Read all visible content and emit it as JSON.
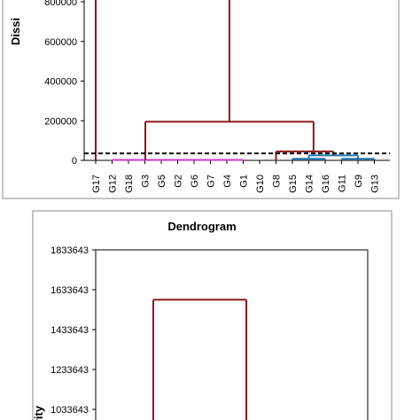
{
  "chart_data": [
    {
      "type": "dendrogram",
      "ylabel": "Dissi",
      "y_ticks": [
        0,
        200000,
        400000,
        600000,
        800000
      ],
      "y_tick_labels": [
        "0",
        "200000",
        "400000",
        "600000",
        "800000"
      ],
      "ylim": [
        0,
        820000
      ],
      "leaves": [
        "G17",
        "G12",
        "G18",
        "G3",
        "G5",
        "G2",
        "G6",
        "G7",
        "G4",
        "G1",
        "G10",
        "G8",
        "G15",
        "G14",
        "G16",
        "G11",
        "G9",
        "G13"
      ],
      "truncation_line": 35000,
      "merges": [
        {
          "left": "G17",
          "right": "cluster_rest",
          "height": 820000,
          "color": "#8B1A1A"
        },
        {
          "left": "cluster_magenta",
          "right": "cluster_blue_group",
          "height": 195000,
          "color": "#8B1A1A"
        },
        {
          "left": "G8",
          "right": "cluster_blue",
          "height": 45000,
          "color": "#8B1A1A"
        },
        {
          "left": "cluster_blue_a",
          "right": "cluster_blue_b",
          "height": 25000,
          "color": "#1F77B4"
        }
      ],
      "cluster_colors": {
        "magenta": "#CC33CC",
        "blue": "#1F77B4",
        "main": "#8B1A1A"
      }
    },
    {
      "type": "dendrogram",
      "title": "Dendrogram",
      "ylabel": "rity",
      "y_ticks": [
        1033643,
        1233643,
        1433643,
        1633643,
        1833643
      ],
      "y_tick_labels": [
        "1033643",
        "1233643",
        "1433643",
        "1633643",
        "1833643"
      ],
      "ylim": [
        933643,
        1833643
      ],
      "merges": [
        {
          "height": 1583643,
          "color": "#8B1A1A"
        }
      ]
    }
  ]
}
